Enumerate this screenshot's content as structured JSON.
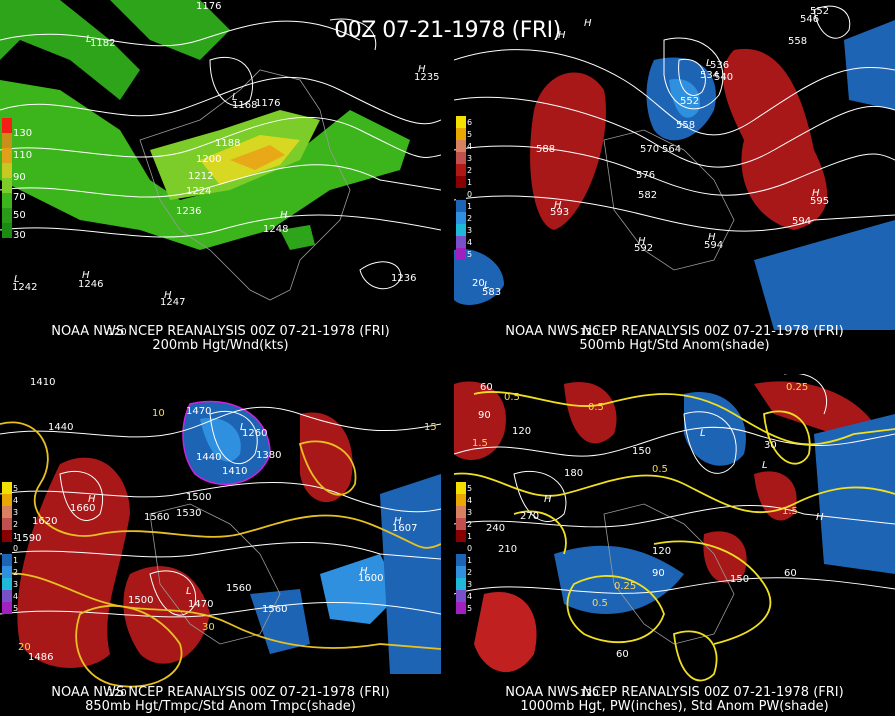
{
  "title": "00Z 07-21-1978 (FRI)",
  "panels": [
    {
      "id": "p200",
      "caption_line1": "NOAA NWS NCEP REANALYSIS 00Z 07-21-1978 (FRI)",
      "caption_line2": "200mb Hgt/Wnd(kts)",
      "legend_values": [
        "130",
        "110",
        "90",
        "70",
        "50",
        "30"
      ],
      "legend_colors": [
        "#f41e16",
        "#d8a818",
        "#e8e82a",
        "#7ccc2a",
        "#3cb41c",
        "#1a8c14"
      ],
      "contour_labels": [
        "1176",
        "1176",
        "1188",
        "1200",
        "1212",
        "1224",
        "1236",
        "1248",
        "1236",
        "1242",
        "1246",
        "1247",
        "1235",
        "1182",
        "1168"
      ],
      "axis_labels": [
        "-120"
      ]
    },
    {
      "id": "p500",
      "caption_line1": "NOAA NWS NCEP REANALYSIS 00Z 07-21-1978 (FRI)",
      "caption_line2": "500mb Hgt/Std Anom(shade)",
      "legend_values": [
        "6",
        "5",
        "4",
        "3",
        "2",
        "1",
        "0",
        "1",
        "2",
        "3",
        "4",
        "5"
      ],
      "legend_colors": [
        "#f4e000",
        "#e8a800",
        "#d88060",
        "#c05050",
        "#b01818",
        "#880000",
        "#000000",
        "#1e64b4",
        "#3090e0",
        "#20b8d8",
        "#7850c8",
        "#a020c0"
      ],
      "contour_labels": [
        "588",
        "552",
        "558",
        "564",
        "570",
        "576",
        "582",
        "546",
        "552",
        "558",
        "593",
        "594",
        "595",
        "583",
        "592",
        "594",
        "536",
        "540",
        "534",
        "20"
      ],
      "axis_labels": [
        "-120"
      ]
    },
    {
      "id": "p850",
      "caption_line1": "NOAA NWS NCEP REANALYSIS 00Z 07-21-1978 (FRI)",
      "caption_line2": "850mb Hgt/Tmpc/Std Anom Tmpc(shade)",
      "legend_values": [
        "5",
        "4",
        "3",
        "2",
        "1",
        "0",
        "1",
        "2",
        "3",
        "4",
        "5"
      ],
      "legend_colors": [
        "#f4e000",
        "#e8a800",
        "#d88060",
        "#c05050",
        "#880000",
        "#000000",
        "#1e64b4",
        "#3090e0",
        "#20b8d8",
        "#7850c8",
        "#a020c0"
      ],
      "contour_labels": [
        "1410",
        "1440",
        "1470",
        "1260",
        "1380",
        "1410",
        "1440",
        "1500",
        "1530",
        "1560",
        "1620",
        "1590",
        "1500",
        "1470",
        "1560",
        "1560",
        "1660",
        "1607",
        "1600",
        "1486",
        "10",
        "15",
        "30",
        "20"
      ],
      "axis_labels": [
        "-120"
      ]
    },
    {
      "id": "p1000",
      "caption_line1": "NOAA NWS NCEP REANALYSIS 00Z 07-21-1978 (FRI)",
      "caption_line2": "1000mb Hgt, PW(inches), Std Anom PW(shade)",
      "legend_values": [
        "5",
        "4",
        "3",
        "2",
        "1",
        "0",
        "1",
        "2",
        "3",
        "4",
        "5"
      ],
      "legend_colors": [
        "#f4e000",
        "#e8a800",
        "#d88060",
        "#c05050",
        "#880000",
        "#000000",
        "#1e64b4",
        "#3090e0",
        "#20b8d8",
        "#7850c8",
        "#a020c0"
      ],
      "contour_labels": [
        "60",
        "120",
        "90",
        "0.5",
        "0.5",
        "1.5",
        "180",
        "150",
        "270",
        "240",
        "210",
        "0.5",
        "0.25",
        "0.5",
        "120",
        "90",
        "150",
        "60",
        "30",
        "60",
        "0.25",
        "1.5"
      ],
      "axis_labels": [
        "-120"
      ]
    }
  ]
}
